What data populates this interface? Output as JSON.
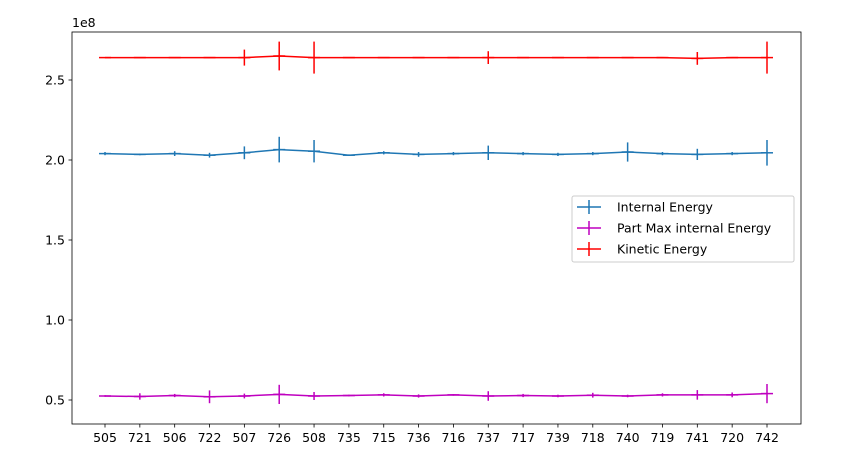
{
  "chart_data": {
    "type": "line",
    "error_bars": true,
    "x_ticks": [
      "505",
      "721",
      "506",
      "722",
      "507",
      "726",
      "508",
      "735",
      "715",
      "736",
      "716",
      "737",
      "717",
      "739",
      "718",
      "740",
      "719",
      "741",
      "720",
      "742"
    ],
    "y_ticks": [
      0.5,
      1.0,
      1.5,
      2.0,
      2.5
    ],
    "y_tick_labels": [
      "0.5",
      "1.0",
      "1.5",
      "2.0",
      "2.5"
    ],
    "y_offset_label": "1e8",
    "ylim": [
      0.35,
      2.8
    ],
    "grid": false,
    "legend_position": "center-right",
    "series": [
      {
        "name": "Internal Energy",
        "color": "#1f77b4",
        "values": [
          2.04,
          2.035,
          2.04,
          2.03,
          2.045,
          2.065,
          2.055,
          2.03,
          2.045,
          2.035,
          2.04,
          2.045,
          2.04,
          2.035,
          2.04,
          2.05,
          2.04,
          2.035,
          2.04,
          2.045
        ],
        "errors": [
          0.01,
          0.005,
          0.015,
          0.015,
          0.04,
          0.08,
          0.07,
          0.005,
          0.01,
          0.015,
          0.01,
          0.045,
          0.01,
          0.01,
          0.01,
          0.06,
          0.01,
          0.035,
          0.01,
          0.08
        ]
      },
      {
        "name": "Part Max internal Energy",
        "color": "#bf00bf",
        "values": [
          0.525,
          0.522,
          0.528,
          0.52,
          0.525,
          0.535,
          0.525,
          0.528,
          0.532,
          0.525,
          0.532,
          0.525,
          0.528,
          0.525,
          0.53,
          0.525,
          0.532,
          0.532,
          0.532,
          0.54
        ],
        "errors": [
          0.005,
          0.02,
          0.01,
          0.04,
          0.015,
          0.06,
          0.025,
          0.005,
          0.01,
          0.01,
          0.005,
          0.03,
          0.01,
          0.008,
          0.015,
          0.008,
          0.01,
          0.03,
          0.015,
          0.06
        ]
      },
      {
        "name": "Kinetic Energy",
        "color": "#ff0000",
        "values": [
          2.64,
          2.64,
          2.64,
          2.64,
          2.64,
          2.65,
          2.64,
          2.64,
          2.64,
          2.64,
          2.64,
          2.64,
          2.64,
          2.64,
          2.64,
          2.64,
          2.64,
          2.635,
          2.64,
          2.64
        ],
        "errors": [
          0.003,
          0.003,
          0.003,
          0.003,
          0.05,
          0.09,
          0.1,
          0.003,
          0.003,
          0.003,
          0.003,
          0.04,
          0.003,
          0.003,
          0.003,
          0.003,
          0.003,
          0.04,
          0.003,
          0.1
        ]
      }
    ]
  }
}
